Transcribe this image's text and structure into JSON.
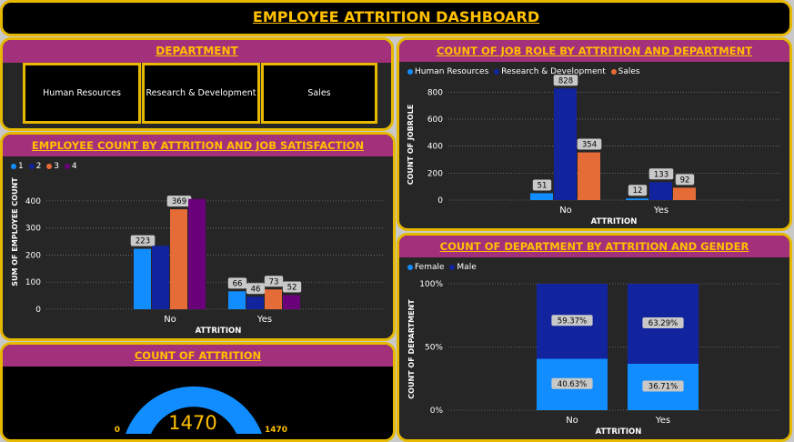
{
  "header": {
    "title": "EMPLOYEE ATTRITION DASHBOARD"
  },
  "department_panel": {
    "title": "DEPARTMENT",
    "buttons": [
      "Human Resources",
      "Research & Development",
      "Sales"
    ]
  },
  "satisfaction_chart": {
    "title": "EMPLOYEE COUNT BY ATTRITION AND JOB SATISFACTION",
    "ylabel": "SUM OF EMPLOYEE COUNT",
    "xlabel": "ATTRITION",
    "legend": [
      "1",
      "2",
      "3",
      "4"
    ]
  },
  "attrition_count": {
    "title": "COUNT OF ATTRITION",
    "value": "1470",
    "min_label": "0",
    "max_label": "1470"
  },
  "jobrole_chart": {
    "title": "COUNT OF JOB ROLE BY ATTRITION AND DEPARTMENT",
    "ylabel": "COUNT OF JOBROLE",
    "xlabel": "ATTRITION",
    "legend": [
      "Human Resources",
      "Research & Development",
      "Sales"
    ]
  },
  "gender_chart": {
    "title": "COUNT OF DEPARTMENT BY ATTRITION AND GENDER",
    "ylabel": "COUNT OF DEPARTMENT",
    "xlabel": "ATTRITION",
    "legend": [
      "Female",
      "Male"
    ]
  },
  "colors": {
    "series_1": "#118dff",
    "series_2": "#12239e",
    "series_3": "#e66c37",
    "series_4": "#6b007b",
    "accent": "#ffc000",
    "panel_title_bg": "#a3307a",
    "border": "#e6b800"
  },
  "chart_data": [
    {
      "id": "satisfaction",
      "type": "bar",
      "title": "EMPLOYEE COUNT BY ATTRITION AND JOB SATISFACTION",
      "categories": [
        "No",
        "Yes"
      ],
      "series": [
        {
          "name": "1",
          "values": [
            223,
            66
          ],
          "labels": [
            "223",
            "66"
          ]
        },
        {
          "name": "2",
          "values": [
            234,
            46
          ],
          "labels": [
            "",
            "46"
          ]
        },
        {
          "name": "3",
          "values": [
            369,
            73
          ],
          "labels": [
            "369",
            "73"
          ]
        },
        {
          "name": "4",
          "values": [
            407,
            52
          ],
          "labels": [
            "",
            "52"
          ]
        }
      ],
      "ylim": [
        0,
        450
      ],
      "yticks": [
        0,
        100,
        200,
        300,
        400
      ],
      "xlabel": "ATTRITION",
      "ylabel": "SUM OF EMPLOYEE COUNT"
    },
    {
      "id": "jobrole",
      "type": "bar",
      "title": "COUNT OF JOB ROLE BY ATTRITION AND DEPARTMENT",
      "categories": [
        "No",
        "Yes"
      ],
      "series": [
        {
          "name": "Human Resources",
          "values": [
            51,
            12
          ],
          "labels": [
            "51",
            "12"
          ]
        },
        {
          "name": "Research & Development",
          "values": [
            828,
            133
          ],
          "labels": [
            "828",
            "133"
          ]
        },
        {
          "name": "Sales",
          "values": [
            354,
            92
          ],
          "labels": [
            "354",
            "92"
          ]
        }
      ],
      "ylim": [
        0,
        850
      ],
      "yticks": [
        0,
        200,
        400,
        600,
        800
      ],
      "xlabel": "ATTRITION",
      "ylabel": "COUNT OF JOBROLE"
    },
    {
      "id": "gender",
      "type": "bar",
      "stacked": "percent",
      "title": "COUNT OF DEPARTMENT BY ATTRITION AND GENDER",
      "categories": [
        "No",
        "Yes"
      ],
      "series": [
        {
          "name": "Female",
          "values": [
            40.63,
            36.71
          ],
          "labels": [
            "40.63%",
            "36.71%"
          ]
        },
        {
          "name": "Male",
          "values": [
            59.37,
            63.29
          ],
          "labels": [
            "59.37%",
            "63.29%"
          ]
        }
      ],
      "yticks": [
        "0%",
        "50%",
        "100%"
      ],
      "xlabel": "ATTRITION",
      "ylabel": "COUNT OF DEPARTMENT"
    },
    {
      "id": "attrition_gauge",
      "type": "gauge",
      "title": "COUNT OF ATTRITION",
      "value": 1470,
      "min": 0,
      "max": 1470
    }
  ]
}
